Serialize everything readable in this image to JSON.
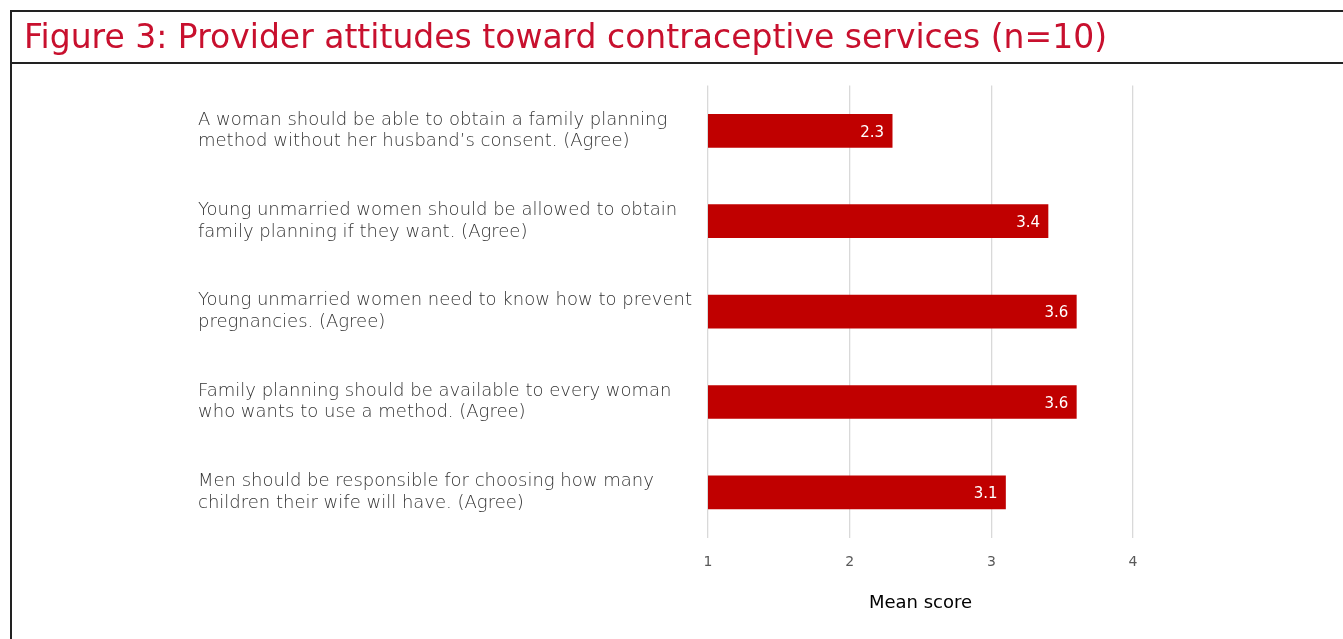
{
  "chart_data": {
    "type": "bar",
    "orientation": "horizontal",
    "title": "Figure 3: Provider attitudes toward contraceptive services (n=10)",
    "xlabel": "Mean score",
    "categories": [
      "A woman should be able to obtain a family planning method without her husband’s consent. (Agree)",
      "Young unmarried women should be allowed to obtain family planning if they want. (Agree)",
      "Young unmarried women need to know how to prevent pregnancies. (Agree)",
      "Family planning should be available to every woman who wants to use a method. (Agree)",
      "Men should be responsible for choosing how many children their wife will have. (Agree)"
    ],
    "values": [
      2.3,
      3.4,
      3.6,
      3.6,
      3.1
    ],
    "color": "#c00000",
    "xlim": [
      1,
      4
    ],
    "xticks": [
      1,
      2,
      3,
      4
    ],
    "grid": "x",
    "data_labels": true,
    "legend": false
  }
}
